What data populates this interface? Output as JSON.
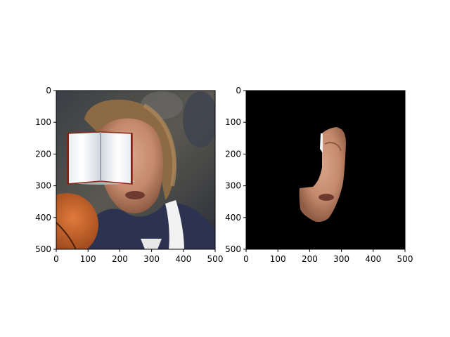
{
  "chart_data": [
    {
      "type": "image",
      "title": "",
      "content": "photo of basketball player face with open book graphic overlay",
      "xlim": [
        0,
        500
      ],
      "ylim": [
        500,
        0
      ],
      "xticks": [
        "0",
        "100",
        "200",
        "300",
        "400",
        "500"
      ],
      "yticks": [
        "0",
        "100",
        "200",
        "300",
        "400",
        "500"
      ],
      "overlay": {
        "type": "open-book",
        "x_range": [
          35,
          240
        ],
        "y_range": [
          135,
          290
        ]
      }
    },
    {
      "type": "image",
      "title": "",
      "content": "segmentation mask result: face region on black background",
      "xlim": [
        0,
        500
      ],
      "ylim": [
        500,
        0
      ],
      "xticks": [
        "0",
        "100",
        "200",
        "300",
        "400",
        "500"
      ],
      "yticks": [
        "0",
        "100",
        "200",
        "300",
        "400",
        "500"
      ],
      "background_color": "#000000"
    }
  ]
}
